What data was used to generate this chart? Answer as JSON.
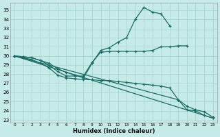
{
  "xlabel": "Humidex (Indice chaleur)",
  "xlim": [
    -0.5,
    23.5
  ],
  "ylim": [
    22.7,
    35.8
  ],
  "yticks": [
    23,
    24,
    25,
    26,
    27,
    28,
    29,
    30,
    31,
    32,
    33,
    34,
    35
  ],
  "xticks": [
    0,
    1,
    2,
    3,
    4,
    5,
    6,
    7,
    8,
    9,
    10,
    11,
    12,
    13,
    14,
    15,
    16,
    17,
    18,
    19,
    20,
    21,
    22,
    23
  ],
  "bg_color": "#c5eae7",
  "grid_color": "#a8d8d4",
  "line_color": "#1a6b63",
  "line1_x": [
    0,
    1,
    2,
    3,
    4,
    5,
    6,
    7,
    8,
    9,
    10,
    11,
    12,
    13,
    14,
    15,
    16,
    17,
    18
  ],
  "line1_y": [
    30.0,
    29.9,
    29.8,
    29.5,
    29.2,
    28.6,
    28.2,
    27.9,
    27.6,
    29.2,
    30.6,
    30.9,
    31.5,
    32.0,
    34.0,
    35.3,
    34.8,
    34.6,
    33.3
  ],
  "line2_x": [
    0,
    1,
    2,
    3,
    4,
    5,
    6,
    7,
    8,
    9,
    10,
    11,
    12,
    13,
    14,
    15,
    16,
    17,
    18,
    19,
    20
  ],
  "line2_y": [
    30.0,
    29.9,
    29.8,
    29.5,
    29.0,
    28.3,
    27.8,
    27.8,
    27.8,
    29.3,
    30.4,
    30.5,
    30.5,
    30.5,
    30.5,
    30.5,
    30.6,
    31.0,
    31.0,
    31.1,
    31.1
  ],
  "line3_x": [
    0,
    1,
    2,
    3,
    4,
    5,
    6,
    7,
    8,
    9,
    10,
    11,
    12,
    13,
    14,
    15,
    16,
    17,
    18,
    19,
    20,
    21,
    22,
    23
  ],
  "line3_y": [
    30.0,
    29.8,
    29.6,
    29.2,
    28.7,
    27.9,
    27.6,
    27.5,
    27.4,
    27.4,
    27.3,
    27.3,
    27.2,
    27.1,
    27.0,
    26.9,
    26.8,
    26.7,
    26.5,
    25.2,
    24.1,
    24.0,
    23.5,
    23.2
  ],
  "line4_x": [
    0,
    23
  ],
  "line4_y": [
    30.0,
    23.2
  ],
  "line5_x": [
    0,
    19,
    20,
    21,
    22,
    23
  ],
  "line5_y": [
    30.0,
    25.2,
    24.5,
    24.1,
    23.9,
    23.3
  ]
}
